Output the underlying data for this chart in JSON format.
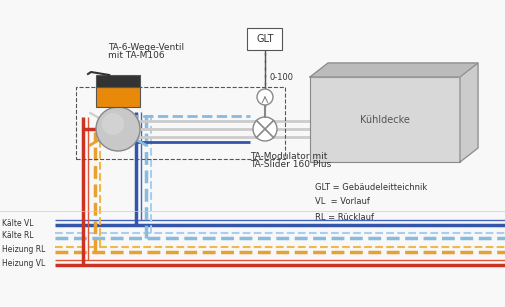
{
  "bg_color": "#f8f8f8",
  "fig_width": 5.06,
  "fig_height": 3.07,
  "dpi": 100,
  "colors": {
    "red": "#cc3322",
    "red2": "#e05533",
    "orange": "#e8a030",
    "orange2": "#f0b84a",
    "blue_dark": "#3355aa",
    "blue_dark2": "#4466bb",
    "blue_light": "#88bbdd",
    "blue_light2": "#aaccee",
    "gray": "#888888",
    "gray_light": "#cccccc",
    "gray_bg": "#d8d8d8",
    "gray_mid": "#bbbbbb",
    "black": "#333333",
    "dark_gray": "#555555",
    "white": "#ffffff"
  },
  "labels": {
    "valve_label_1": "TA-6-Wege-Ventil",
    "valve_label_2": "mit TA-M106",
    "modulator_label_1": "TA-Modulator mit",
    "modulator_label_2": "TA-Slider 160 Plus",
    "kuhldecke_label": "Kühldecke",
    "glt_label": "GLT",
    "signal_label": "0-100",
    "legend_glt": "GLT = Gebäudeleitteichnik",
    "legend_vl": "VL  = Vorlauf",
    "legend_rl": "RL = Rücklauf",
    "heizung_vl": "Heizung VL",
    "heizung_rl": "Heizung RL",
    "kalte_rl": "Kälte RL",
    "kalte_vl": "Kälte VL"
  }
}
